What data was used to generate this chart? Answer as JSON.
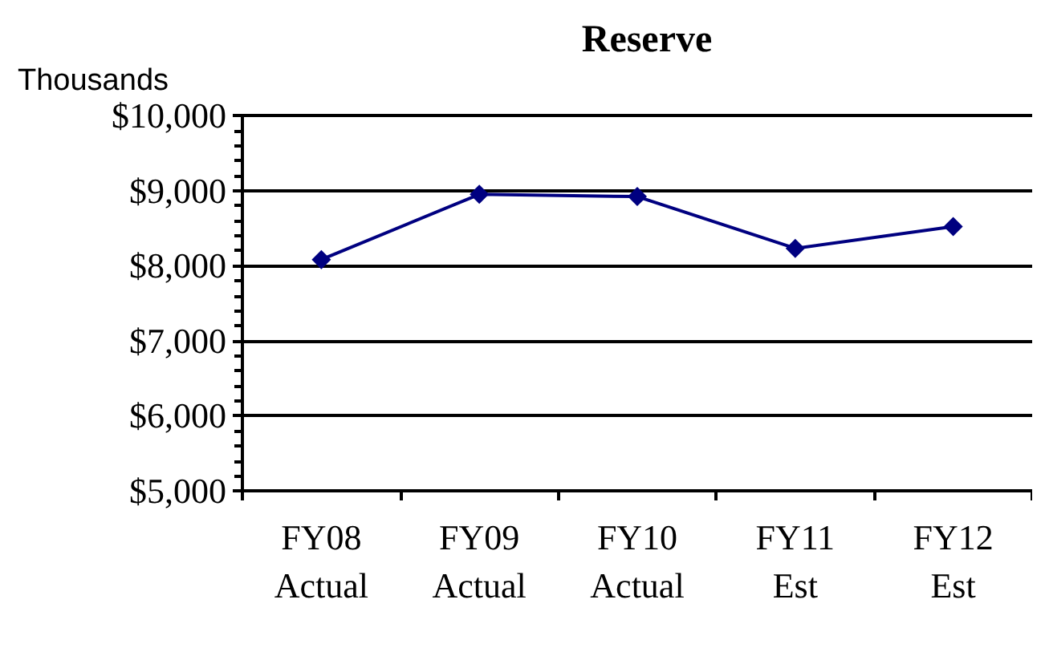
{
  "chart_data": {
    "type": "line",
    "title": "Reserve",
    "ylabel": "Thousands",
    "categories": [
      "FY08\nActual",
      "FY09\nActual",
      "FY10\nActual",
      "FY11\nEst",
      "FY12\nEst"
    ],
    "series": [
      {
        "color": "#000080",
        "values": [
          8080,
          8950,
          8920,
          8230,
          8520
        ]
      }
    ],
    "ylim": [
      5000,
      10000
    ],
    "yticks": [
      {
        "value": 5000,
        "label": "$5,000"
      },
      {
        "value": 6000,
        "label": "$6,000"
      },
      {
        "value": 7000,
        "label": "$7,000"
      },
      {
        "value": 8000,
        "label": "$8,000"
      },
      {
        "value": 9000,
        "label": "$9,000"
      },
      {
        "value": 10000,
        "label": "$10,000"
      }
    ],
    "grid": "y",
    "marker": "diamond",
    "line_style": "solid"
  }
}
